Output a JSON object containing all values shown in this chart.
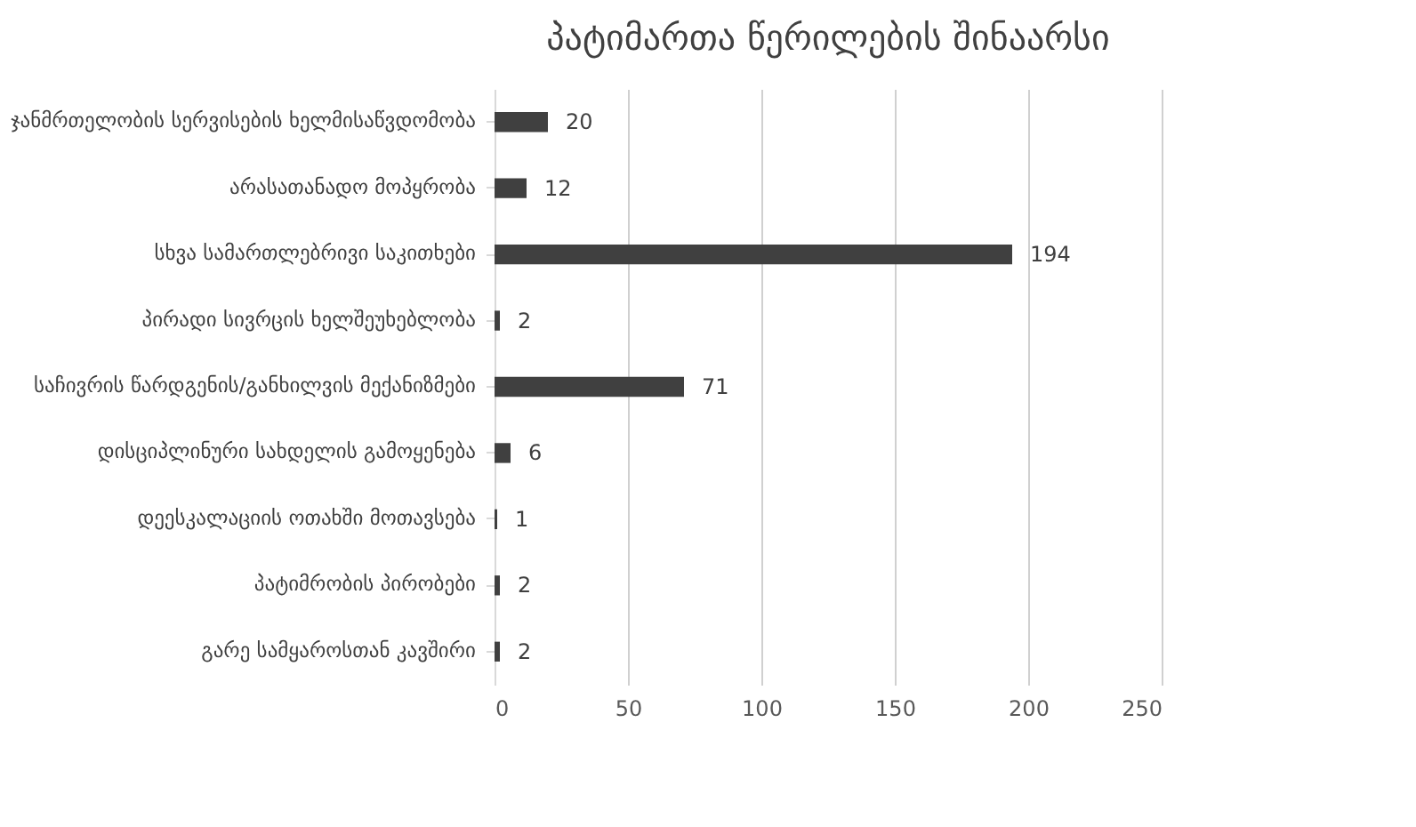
{
  "chart_data": {
    "type": "bar",
    "orientation": "horizontal",
    "title": "პატიმართა წერილების შინაარსი",
    "categories": [
      "ჯანმრთელობის სერვისების ხელმისაწვდომობა",
      "არასათანადო მოპყრობა",
      "სხვა სამართლებრივი საკითხები",
      "პირადი სივრცის ხელშეუხებლობა",
      "საჩივრის წარდგენის/განხილვის მექანიზმები",
      "დისციპლინური სახდელის გამოყენება",
      "დეესკალაციის ოთახში მოთავსება",
      "პატიმრობის პირობები",
      "გარე სამყაროსთან კავშირი"
    ],
    "values": [
      20,
      12,
      194,
      2,
      71,
      6,
      1,
      2,
      2
    ],
    "color": "#404040",
    "xlim": [
      0,
      250
    ],
    "xticks": [
      0,
      50,
      100,
      150,
      200,
      250
    ],
    "grid": "x",
    "data_labels": true
  }
}
